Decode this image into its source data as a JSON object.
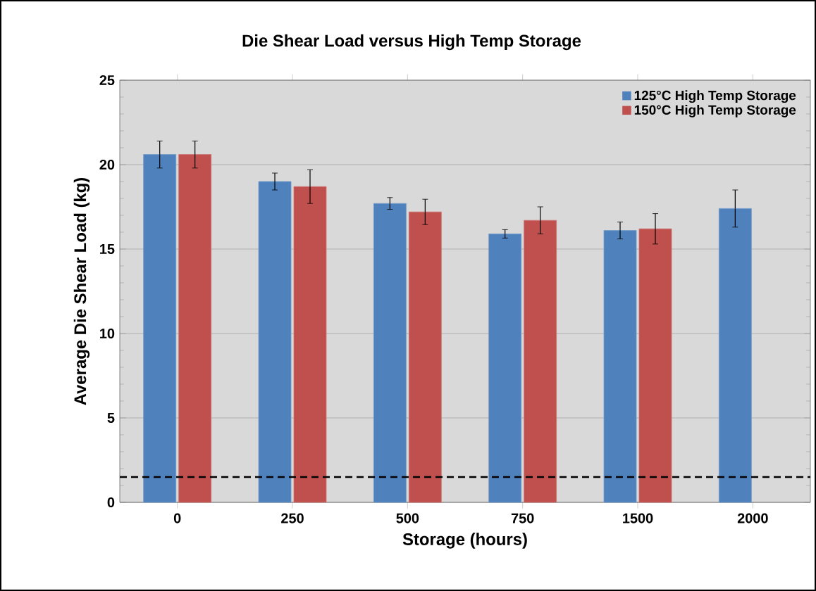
{
  "chart_data": {
    "type": "bar",
    "title": "Die Shear Load versus High Temp Storage",
    "xlabel": "Storage (hours)",
    "ylabel": "Average Die Shear Load (kg)",
    "categories": [
      "0",
      "250",
      "500",
      "750",
      "1500",
      "2000"
    ],
    "series": [
      {
        "name": "125°C High Temp Storage",
        "color": "#4f81bd",
        "values": [
          20.6,
          19.0,
          17.7,
          15.9,
          16.1,
          17.4
        ],
        "errors": [
          0.8,
          0.5,
          0.35,
          0.25,
          0.5,
          1.1
        ]
      },
      {
        "name": "150°C High Temp Storage",
        "color": "#c0504d",
        "values": [
          20.6,
          18.7,
          17.2,
          16.7,
          16.2,
          null
        ],
        "errors": [
          0.8,
          1.0,
          0.75,
          0.8,
          0.9,
          null
        ]
      }
    ],
    "ylim": [
      0,
      25
    ],
    "yticks": [
      0,
      5,
      10,
      15,
      20,
      25
    ],
    "grid": "y",
    "legend": "top right",
    "ref_lines": [
      {
        "axis": "y",
        "value": 1.5,
        "color": "#000000",
        "line_style": "dashed"
      }
    ]
  }
}
